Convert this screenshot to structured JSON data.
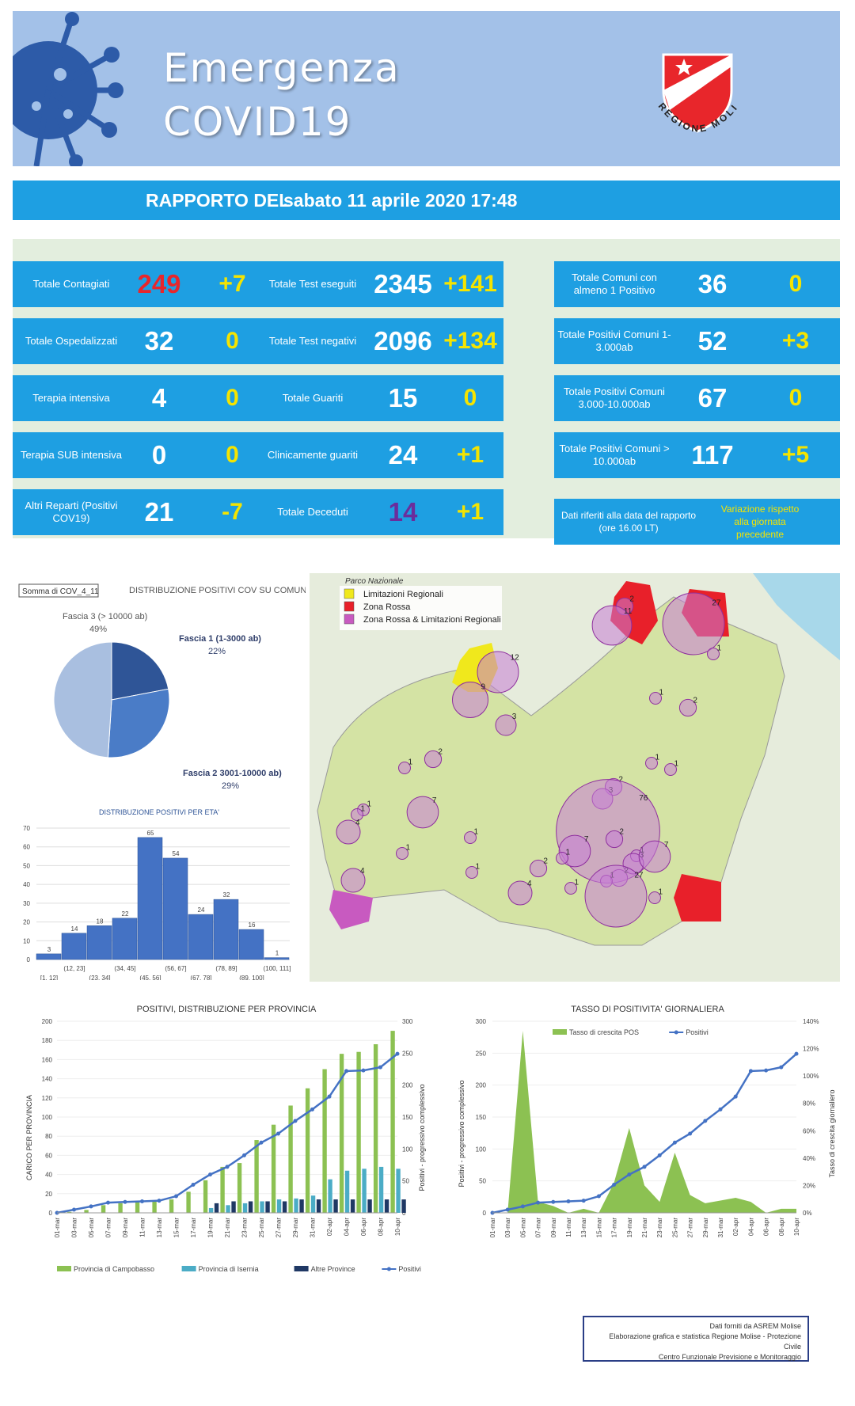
{
  "header": {
    "title_line1": "Emergenza",
    "title_line2": "COVID19",
    "logo_text": "REGIONE MOLISE"
  },
  "report": {
    "label": "RAPPORTO DEL",
    "date": "sabato 11 aprile 2020 17:48"
  },
  "stats": {
    "col1": [
      {
        "label": "Totale Contagiati",
        "value": "249",
        "delta": "+7",
        "value_color": "#e8262b"
      },
      {
        "label": "Totale Ospedalizzati",
        "value": "32",
        "delta": "0"
      },
      {
        "label": "Terapia  intensiva",
        "value": "4",
        "delta": "0"
      },
      {
        "label": "Terapia SUB intensiva",
        "value": "0",
        "delta": "0"
      },
      {
        "label": "Altri Reparti (Positivi COV19)",
        "value": "21",
        "delta": "-7"
      }
    ],
    "col2": [
      {
        "label": "Totale Test eseguiti",
        "value": "2345",
        "delta": "+141"
      },
      {
        "label": "Totale Test negativi",
        "value": "2096",
        "delta": "+134"
      },
      {
        "label": "Totale Guariti",
        "value": "15",
        "delta": "0"
      },
      {
        "label": "Clinicamente guariti",
        "value": "24",
        "delta": "+1"
      },
      {
        "label": "Totale Deceduti",
        "value": "14",
        "delta": "+1",
        "value_color": "#6b2d9c"
      }
    ],
    "col3": [
      {
        "label": "Totale Comuni con almeno 1 Positivo",
        "value": "36",
        "delta": "0"
      },
      {
        "label": "Totale Positivi Comuni 1-3.000ab",
        "value": "52",
        "delta": "+3"
      },
      {
        "label": "Totale Positivi Comuni 3.000-10.000ab",
        "value": "67",
        "delta": "0"
      },
      {
        "label": "Totale Positivi Comuni > 10.000ab",
        "value": "117",
        "delta": "+5"
      }
    ],
    "note_left": "Dati riferiti alla data del rapporto (ore 16.00 LT)",
    "note_right": "Variazione rispetto alla giornata precedente"
  },
  "map": {
    "legend": [
      {
        "label": "Limitazioni Regionali",
        "color": "#f0e81c"
      },
      {
        "label": "Zona Rossa",
        "color": "#e8202a"
      },
      {
        "label": "Zona Rossa & Limitazioni Regionali",
        "color": "#c85ac0"
      }
    ],
    "park_label": "Parco Nazionale",
    "circles": [
      "2",
      "11",
      "27",
      "1",
      "1",
      "2",
      "12",
      "9",
      "3",
      "2",
      "1",
      "1",
      "1",
      "2",
      "3",
      "7",
      "1",
      "1",
      "76",
      "2",
      "1",
      "4",
      "1",
      "1",
      "1",
      "2",
      "7",
      "3",
      "2",
      "1",
      "7",
      "4",
      "1",
      "27",
      "1",
      "4",
      "1"
    ]
  },
  "chart_data": [
    {
      "type": "pie",
      "filter_label": "Somma di COV_4_11",
      "title": "DISTRIBUZIONE POSITIVI  COV SU COMUNI",
      "slices": [
        {
          "label": "Fascia 1 (1-3000 ab)",
          "pct": "22%",
          "value": 22,
          "color": "#2f5597"
        },
        {
          "label": "Fascia 2 3001-10000 ab)",
          "pct": "29%",
          "value": 29,
          "color": "#4a7cc7"
        },
        {
          "label": "Fascia 3 (> 10000 ab)",
          "pct": "49%",
          "value": 49,
          "color": "#a9bfe0"
        }
      ]
    },
    {
      "type": "bar",
      "title": "DISTRIBUZIONE POSITIVI PER ETA'",
      "categories": [
        "[1, 12]",
        "(12, 23]",
        "(23, 34]",
        "(34, 45]",
        "(45, 56]",
        "(56, 67]",
        "(67, 78]",
        "(78, 89]",
        "(89, 100]",
        "(100, 111]"
      ],
      "values": [
        3,
        14,
        18,
        22,
        65,
        54,
        24,
        32,
        16,
        1
      ],
      "ylim": [
        0,
        70
      ],
      "yticks": [
        0,
        10,
        20,
        30,
        40,
        50,
        60,
        70
      ]
    },
    {
      "type": "bar+line",
      "title": "POSITIVI, DISTRIBUZIONE PER PROVINCIA",
      "ylabel": "CARICO PER PROVINCIA",
      "y2label": "Positivi - progressivo complessivo",
      "ylim": [
        0,
        200
      ],
      "y2lim": [
        0,
        300
      ],
      "x": [
        "01-mar",
        "03-mar",
        "05-mar",
        "07-mar",
        "09-mar",
        "11-mar",
        "13-mar",
        "15-mar",
        "17-mar",
        "19-mar",
        "21-mar",
        "23-mar",
        "25-mar",
        "27-mar",
        "29-mar",
        "31-mar",
        "02-apr",
        "04-apr",
        "06-apr",
        "08-apr",
        "10-apr"
      ],
      "series": [
        {
          "name": "Provincia di Campobasso",
          "color": "#8cc152",
          "values": [
            0,
            1,
            3,
            8,
            10,
            12,
            12,
            14,
            22,
            34,
            48,
            52,
            76,
            92,
            112,
            130,
            150,
            166,
            168,
            176,
            190
          ]
        },
        {
          "name": "Provincia di Isernia",
          "color": "#4bacc6",
          "values": [
            0,
            0,
            0,
            0,
            0,
            0,
            0,
            0,
            0,
            5,
            8,
            10,
            12,
            14,
            15,
            18,
            35,
            44,
            46,
            48,
            46
          ]
        },
        {
          "name": "Altre Province",
          "color": "#1f3864",
          "values": [
            0,
            0,
            0,
            0,
            0,
            0,
            0,
            0,
            0,
            10,
            12,
            12,
            12,
            12,
            14,
            14,
            14,
            14,
            14,
            14,
            14
          ]
        },
        {
          "name": "Positivi",
          "color": "#4472c4",
          "values": [
            0,
            5,
            10,
            16,
            17,
            18,
            19,
            26,
            44,
            60,
            72,
            90,
            110,
            124,
            144,
            162,
            182,
            222,
            223,
            228,
            249
          ]
        }
      ]
    },
    {
      "type": "area+line",
      "title": "TASSO DI POSITIVITA' GIORNALIERA",
      "ylabel": "Positivi - progressivo complessivo",
      "y2label": "Tasso di crescita giornaliero",
      "ylim": [
        0,
        300
      ],
      "y2ticks": [
        "0%",
        "20%",
        "40%",
        "60%",
        "80%",
        "100%",
        "120%",
        "140%"
      ],
      "x": [
        "01-mar",
        "03-mar",
        "05-mar",
        "07-mar",
        "09-mar",
        "11-mar",
        "13-mar",
        "15-mar",
        "17-mar",
        "19-mar",
        "21-mar",
        "23-mar",
        "25-mar",
        "27-mar",
        "29-mar",
        "31-mar",
        "02-apr",
        "04-apr",
        "06-apr",
        "08-apr",
        "10-apr"
      ],
      "series": [
        {
          "name": "Tasso di crescita POS",
          "color": "#8cc152",
          "values": [
            0,
            0,
            133,
            8,
            5,
            0,
            3,
            0,
            22,
            62,
            20,
            8,
            44,
            13,
            7,
            9,
            11,
            8,
            0,
            3,
            3
          ]
        },
        {
          "name": "Positivi",
          "color": "#4472c4",
          "values": [
            0,
            5,
            10,
            16,
            17,
            18,
            19,
            26,
            44,
            60,
            72,
            90,
            110,
            124,
            144,
            162,
            182,
            222,
            223,
            228,
            249
          ]
        }
      ]
    }
  ],
  "credits": [
    "Dati forniti da ASREM Molise",
    "Elaborazione grafica e statistica Regione Molise - Protezione Civile",
    "Centro Funzionale Previsione e Monitoraggio"
  ]
}
